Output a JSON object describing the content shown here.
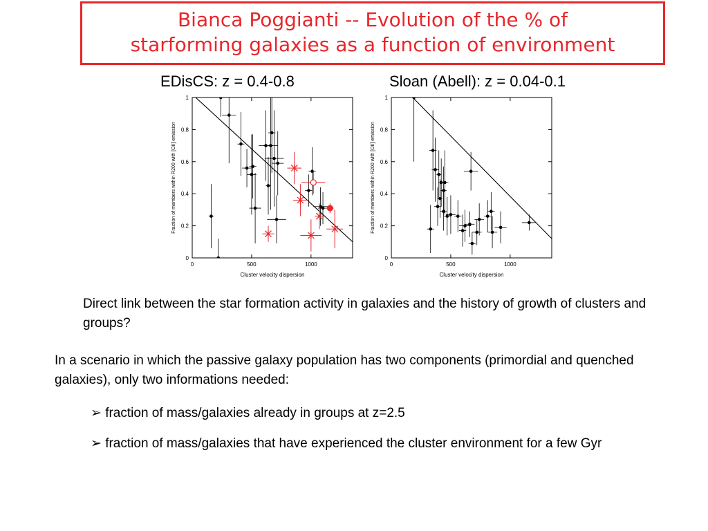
{
  "title": {
    "line1": "Bianca Poggianti  -- Evolution of the % of",
    "line2": "starforming  galaxies as a function of environment"
  },
  "panel_labels": {
    "left": "EDisCS: z = 0.4-0.8",
    "right": "Sloan (Abell): z = 0.04-0.1"
  },
  "colors": {
    "accent": "#e8262b",
    "ink": "#000000"
  },
  "chart_data": [
    {
      "type": "scatter",
      "xlabel": "Cluster velocity dispersion",
      "ylabel": "Fraction of members within R200 with [OII] emission",
      "xlim": [
        0,
        1350
      ],
      "ylim": [
        0,
        1
      ],
      "xticks": [
        0,
        500,
        1000
      ],
      "yticks": [
        0,
        0.2,
        0.4,
        0.6,
        0.8,
        1
      ],
      "line": {
        "x0": 0,
        "y0": 1.02,
        "x1": 1350,
        "y1": 0.1
      },
      "series": [
        {
          "marker": "dot",
          "color": "#000000",
          "points": [
            {
              "x": 240,
              "y": 1.0,
              "xerr": 40,
              "yerr": 0.12
            },
            {
              "x": 310,
              "y": 0.89,
              "xerr": 60,
              "yerr": 0.3
            },
            {
              "x": 410,
              "y": 0.71,
              "xerr": 30,
              "yerr": 0.2
            },
            {
              "x": 460,
              "y": 0.56,
              "xerr": 40,
              "yerr": 0.12
            },
            {
              "x": 510,
              "y": 0.57,
              "xerr": 30,
              "yerr": 0.2
            },
            {
              "x": 500,
              "y": 0.52,
              "xerr": 40,
              "yerr": 0.25
            },
            {
              "x": 620,
              "y": 0.7,
              "xerr": 60,
              "yerr": 0.22
            },
            {
              "x": 660,
              "y": 0.7,
              "xerr": 60,
              "yerr": 0.4
            },
            {
              "x": 670,
              "y": 0.78,
              "xerr": 30,
              "yerr": 0.25
            },
            {
              "x": 690,
              "y": 0.62,
              "xerr": 80,
              "yerr": 0.3
            },
            {
              "x": 720,
              "y": 0.59,
              "xerr": 50,
              "yerr": 0.2
            },
            {
              "x": 640,
              "y": 0.45,
              "xerr": 20,
              "yerr": 0.18
            },
            {
              "x": 530,
              "y": 0.31,
              "xerr": 50,
              "yerr": 0.22
            },
            {
              "x": 710,
              "y": 0.24,
              "xerr": 80,
              "yerr": 0.15
            },
            {
              "x": 160,
              "y": 0.26,
              "xerr": 20,
              "yerr": 0.2
            },
            {
              "x": 980,
              "y": 0.42,
              "xerr": 30,
              "yerr": 0.1
            },
            {
              "x": 1010,
              "y": 0.54,
              "xerr": 30,
              "yerr": 0.15
            },
            {
              "x": 1080,
              "y": 0.32,
              "xerr": 60,
              "yerr": 0.12
            },
            {
              "x": 1100,
              "y": 0.31,
              "xerr": 40,
              "yerr": 0.1
            },
            {
              "x": 220,
              "y": 0.0,
              "xerr": 20,
              "yerr": 0.12
            }
          ]
        },
        {
          "marker": "open",
          "color": "#e8262b",
          "points": [
            {
              "x": 1020,
              "y": 0.47,
              "xerr": 100,
              "yerr": 0.07
            }
          ]
        },
        {
          "marker": "filled",
          "color": "#e8262b",
          "points": [
            {
              "x": 1160,
              "y": 0.31,
              "xerr": 30,
              "yerr": 0.03
            }
          ]
        },
        {
          "marker": "star",
          "color": "#e8262b",
          "points": [
            {
              "x": 860,
              "y": 0.56,
              "xerr": 60,
              "yerr": 0.1
            },
            {
              "x": 910,
              "y": 0.36,
              "xerr": 60,
              "yerr": 0.1
            },
            {
              "x": 1000,
              "y": 0.14,
              "xerr": 90,
              "yerr": 0.1
            },
            {
              "x": 1070,
              "y": 0.26,
              "xerr": 40,
              "yerr": 0.08
            },
            {
              "x": 1200,
              "y": 0.18,
              "xerr": 70,
              "yerr": 0.12
            },
            {
              "x": 640,
              "y": 0.15,
              "xerr": 50,
              "yerr": 0.05
            }
          ]
        }
      ]
    },
    {
      "type": "scatter",
      "xlabel": "Cluster velocity dispersion",
      "ylabel": "Fraction of members within R200 with [OII] emission",
      "xlim": [
        0,
        1350
      ],
      "ylim": [
        0,
        1
      ],
      "xticks": [
        0,
        500,
        1000
      ],
      "yticks": [
        0,
        0.2,
        0.4,
        0.6,
        0.8,
        1
      ],
      "line": {
        "x0": 180,
        "y0": 1.0,
        "x1": 1350,
        "y1": 0.12
      },
      "series": [
        {
          "marker": "dot",
          "color": "#000000",
          "points": [
            {
              "x": 190,
              "y": 1.0,
              "xerr": 15,
              "yerr": 0.4
            },
            {
              "x": 350,
              "y": 0.67,
              "xerr": 30,
              "yerr": 0.25
            },
            {
              "x": 370,
              "y": 0.55,
              "xerr": 30,
              "yerr": 0.2
            },
            {
              "x": 400,
              "y": 0.52,
              "xerr": 20,
              "yerr": 0.15
            },
            {
              "x": 420,
              "y": 0.47,
              "xerr": 25,
              "yerr": 0.15
            },
            {
              "x": 450,
              "y": 0.47,
              "xerr": 30,
              "yerr": 0.2
            },
            {
              "x": 440,
              "y": 0.42,
              "xerr": 25,
              "yerr": 0.15
            },
            {
              "x": 410,
              "y": 0.37,
              "xerr": 20,
              "yerr": 0.12
            },
            {
              "x": 390,
              "y": 0.32,
              "xerr": 30,
              "yerr": 0.12
            },
            {
              "x": 440,
              "y": 0.29,
              "xerr": 25,
              "yerr": 0.12
            },
            {
              "x": 470,
              "y": 0.26,
              "xerr": 30,
              "yerr": 0.12
            },
            {
              "x": 500,
              "y": 0.27,
              "xerr": 40,
              "yerr": 0.12
            },
            {
              "x": 560,
              "y": 0.26,
              "xerr": 30,
              "yerr": 0.1
            },
            {
              "x": 670,
              "y": 0.54,
              "xerr": 60,
              "yerr": 0.12
            },
            {
              "x": 660,
              "y": 0.21,
              "xerr": 40,
              "yerr": 0.08
            },
            {
              "x": 620,
              "y": 0.2,
              "xerr": 50,
              "yerr": 0.1
            },
            {
              "x": 600,
              "y": 0.17,
              "xerr": 30,
              "yerr": 0.1
            },
            {
              "x": 720,
              "y": 0.16,
              "xerr": 40,
              "yerr": 0.08
            },
            {
              "x": 680,
              "y": 0.09,
              "xerr": 30,
              "yerr": 0.07
            },
            {
              "x": 740,
              "y": 0.24,
              "xerr": 40,
              "yerr": 0.1
            },
            {
              "x": 810,
              "y": 0.26,
              "xerr": 30,
              "yerr": 0.1
            },
            {
              "x": 840,
              "y": 0.29,
              "xerr": 30,
              "yerr": 0.12
            },
            {
              "x": 850,
              "y": 0.16,
              "xerr": 40,
              "yerr": 0.1
            },
            {
              "x": 920,
              "y": 0.19,
              "xerr": 50,
              "yerr": 0.1
            },
            {
              "x": 1160,
              "y": 0.22,
              "xerr": 60,
              "yerr": 0.05
            },
            {
              "x": 330,
              "y": 0.18,
              "xerr": 30,
              "yerr": 0.15
            }
          ]
        }
      ]
    }
  ],
  "notes": {
    "para1": "Direct link between the star formation activity in galaxies and the history of growth of clusters and groups?",
    "para2": "In a scenario in which the passive galaxy population has two components (primordial and quenched galaxies), only two informations needed:",
    "bullet_glyph": "➢",
    "bullet1": "fraction of mass/galaxies already in groups at z=2.5",
    "bullet2": "fraction of mass/galaxies that have experienced the cluster environment for a few Gyr"
  }
}
